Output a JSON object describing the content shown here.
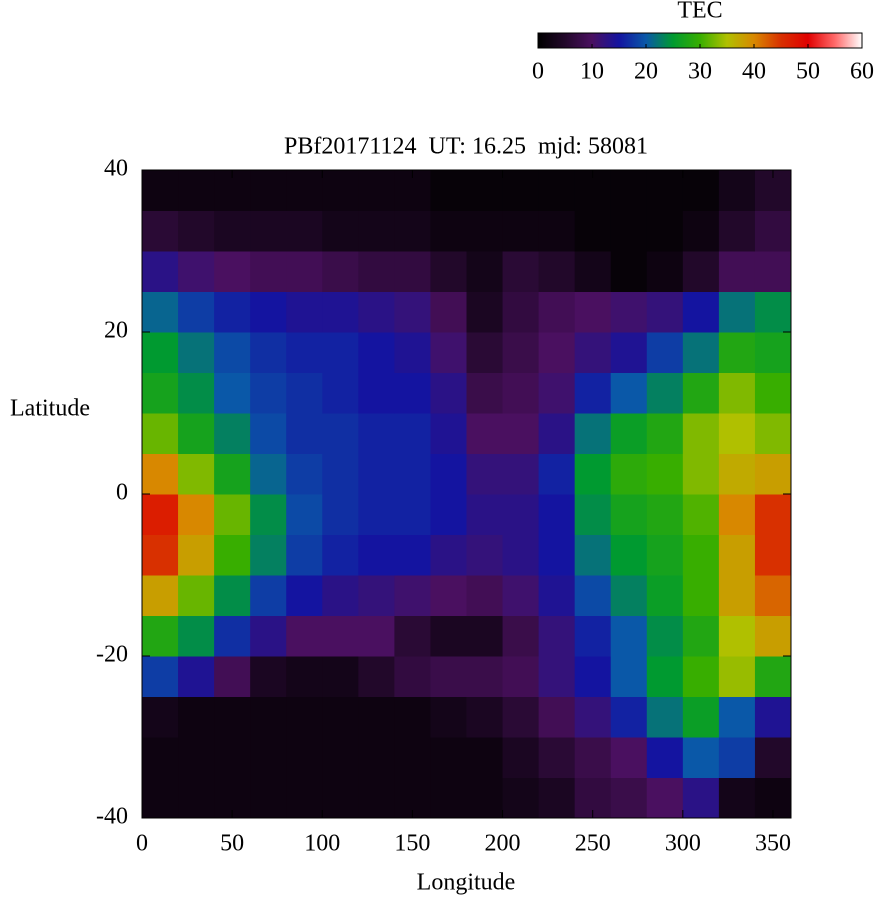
{
  "chart_data": {
    "type": "heatmap",
    "title": "PBf20171124  UT: 16.25  mjd: 58081",
    "x_label": "Longitude",
    "y_label": "Latitude",
    "colorbar_label": "TEC",
    "xlim": [
      0,
      360
    ],
    "ylim": [
      -40,
      40
    ],
    "xticks": [
      0,
      50,
      100,
      150,
      200,
      250,
      300,
      350
    ],
    "yticks": [
      -40,
      -20,
      0,
      20,
      40
    ],
    "zlim": [
      0,
      60
    ],
    "zticks": [
      0,
      10,
      20,
      30,
      40,
      50,
      60
    ],
    "colormap": [
      "#000000",
      "#22082a",
      "#4a1060",
      "#1414a0",
      "#0a58a8",
      "#009a30",
      "#38ae00",
      "#b0c000",
      "#d88800",
      "#d83000",
      "#e00000",
      "#ff6a6a",
      "#ffffff"
    ],
    "x": [
      10,
      30,
      50,
      70,
      90,
      110,
      130,
      150,
      170,
      190,
      210,
      230,
      250,
      270,
      290,
      310,
      330,
      350
    ],
    "y": [
      -37.5,
      -32.5,
      -27.5,
      -22.5,
      -17.5,
      -12.5,
      -7.5,
      -2.5,
      2.5,
      7.5,
      12.5,
      17.5,
      22.5,
      27.5,
      32.5,
      37.5
    ],
    "values": [
      [
        2,
        2,
        2,
        2,
        2,
        2,
        2,
        2,
        2,
        2,
        3,
        4,
        7,
        8,
        10,
        13,
        3,
        2
      ],
      [
        2,
        2,
        2,
        2,
        2,
        2,
        2,
        2,
        2,
        2,
        4,
        6,
        8,
        10,
        15,
        20,
        18,
        5
      ],
      [
        3,
        2,
        2,
        2,
        2,
        2,
        2,
        2,
        3,
        4,
        6,
        9,
        12,
        16,
        22,
        26,
        20,
        14
      ],
      [
        18,
        14,
        9,
        4,
        3,
        3,
        5,
        7,
        8,
        8,
        9,
        12,
        15,
        20,
        25,
        30,
        34,
        28
      ],
      [
        28,
        24,
        17,
        13,
        10,
        10,
        10,
        6,
        4,
        4,
        8,
        12,
        16,
        20,
        24,
        28,
        35,
        38
      ],
      [
        38,
        32,
        24,
        18,
        15,
        13,
        12,
        11,
        10,
        9,
        11,
        14,
        19,
        23,
        26,
        30,
        38,
        42
      ],
      [
        45,
        38,
        30,
        23,
        18,
        16,
        15,
        15,
        13,
        12,
        13,
        15,
        22,
        25,
        27,
        30,
        38,
        45
      ],
      [
        47,
        40,
        32,
        24,
        19,
        17,
        16,
        16,
        15,
        13,
        13,
        15,
        24,
        27,
        28,
        31,
        40,
        45
      ],
      [
        40,
        33,
        27,
        21,
        18,
        17,
        16,
        16,
        15,
        12,
        12,
        16,
        25,
        29,
        30,
        33,
        37,
        38
      ],
      [
        32,
        27,
        23,
        19,
        17,
        17,
        16,
        16,
        14,
        10,
        10,
        13,
        22,
        26,
        28,
        33,
        35,
        33
      ],
      [
        27,
        24,
        20,
        18,
        17,
        16,
        15,
        15,
        13,
        8,
        9,
        11,
        16,
        20,
        23,
        28,
        33,
        30
      ],
      [
        25,
        22,
        19,
        17,
        16,
        16,
        15,
        14,
        11,
        6,
        8,
        10,
        12,
        14,
        18,
        22,
        28,
        27
      ],
      [
        21,
        18,
        16,
        15,
        14,
        14,
        13,
        12,
        9,
        4,
        7,
        9,
        10,
        11,
        12,
        15,
        22,
        24
      ],
      [
        13,
        11,
        10,
        9,
        9,
        8,
        7,
        7,
        5,
        3,
        6,
        5,
        3,
        1,
        2,
        5,
        9,
        9
      ],
      [
        6,
        5,
        4,
        4,
        4,
        3,
        3,
        3,
        2,
        2,
        2,
        2,
        1,
        1,
        1,
        2,
        5,
        7
      ],
      [
        2,
        2,
        2,
        2,
        2,
        2,
        2,
        2,
        1,
        1,
        1,
        1,
        1,
        1,
        1,
        1,
        3,
        5
      ]
    ]
  }
}
